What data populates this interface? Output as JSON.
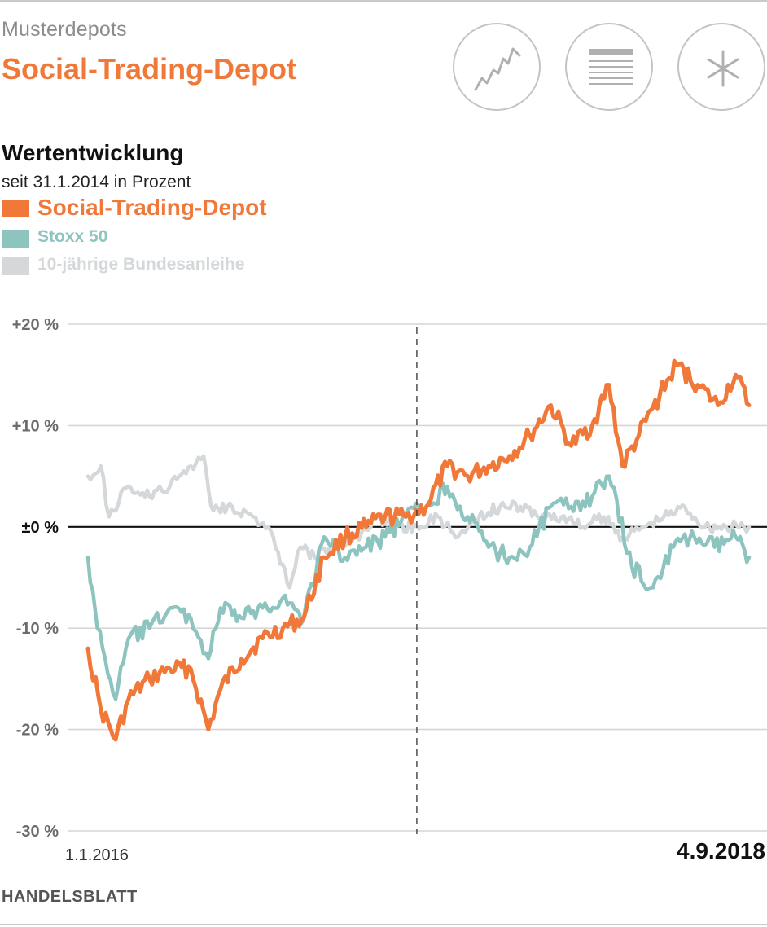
{
  "header": {
    "kicker": "Musterdepots",
    "title": "Social-Trading-Depot"
  },
  "toolbar": {
    "buttons": [
      {
        "icon": "line-chart-icon"
      },
      {
        "icon": "table-icon"
      },
      {
        "icon": "asterisk-icon"
      }
    ]
  },
  "footer": {
    "source": "HANDELSBLATT"
  },
  "colors": {
    "accent": "#f07838",
    "stoxx": "#8ec4c0",
    "bund": "#d4d8da",
    "grid": "#d6d6d6",
    "zero": "#111111",
    "tick": "#6b6b6b"
  },
  "chart_data": {
    "type": "line",
    "title": "Wertentwicklung",
    "subtitle": "seit 31.1.2014 in Prozent",
    "ylim": [
      -30,
      20
    ],
    "yticks": [
      20,
      10,
      0,
      -10,
      -20,
      -30
    ],
    "ytick_labels": [
      "+20 %",
      "+10 %",
      "±0 %",
      "-10 %",
      "-20 %",
      "-30 %"
    ],
    "xlim": [
      "2016-01-01",
      "2018-09-04"
    ],
    "x_labels": [
      "1.1.2016",
      "4.9.2018"
    ],
    "marker_date": "2017-05-01",
    "legend_position": "top-left",
    "grid": true,
    "series": [
      {
        "name": "Social-Trading-Depot",
        "color": "#f07838",
        "x": [
          "2016-01-01",
          "2016-01-20",
          "2016-02-11",
          "2016-03-01",
          "2016-04-01",
          "2016-05-01",
          "2016-06-01",
          "2016-06-27",
          "2016-07-15",
          "2016-08-15",
          "2016-09-15",
          "2016-10-15",
          "2016-11-15",
          "2016-12-15",
          "2017-01-15",
          "2017-02-15",
          "2017-03-15",
          "2017-04-15",
          "2017-05-15",
          "2017-06-15",
          "2017-07-15",
          "2017-08-15",
          "2017-09-15",
          "2017-10-15",
          "2017-11-15",
          "2017-12-15",
          "2018-01-15",
          "2018-02-09",
          "2018-03-01",
          "2018-03-25",
          "2018-04-25",
          "2018-05-20",
          "2018-06-20",
          "2018-07-20",
          "2018-08-15",
          "2018-09-04"
        ],
        "y": [
          -12,
          -18,
          -21,
          -17,
          -15,
          -14,
          -14,
          -20,
          -16,
          -13,
          -11,
          -10,
          -9,
          -3,
          -1,
          0,
          1,
          1,
          2,
          6,
          5,
          6,
          7,
          9,
          12,
          8,
          10,
          14,
          6,
          9,
          13,
          16,
          14,
          12,
          15,
          12
        ]
      },
      {
        "name": "Stoxx 50",
        "color": "#8ec4c0",
        "x": [
          "2016-01-01",
          "2016-01-15",
          "2016-02-11",
          "2016-03-01",
          "2016-04-01",
          "2016-05-01",
          "2016-06-01",
          "2016-06-27",
          "2016-07-15",
          "2016-08-15",
          "2016-09-15",
          "2016-10-15",
          "2016-11-15",
          "2016-12-15",
          "2017-01-15",
          "2017-02-15",
          "2017-03-15",
          "2017-04-15",
          "2017-05-15",
          "2017-06-15",
          "2017-07-15",
          "2017-08-15",
          "2017-09-15",
          "2017-10-15",
          "2017-11-15",
          "2017-12-15",
          "2018-01-15",
          "2018-02-09",
          "2018-03-15",
          "2018-04-15",
          "2018-05-15",
          "2018-06-15",
          "2018-07-15",
          "2018-08-15",
          "2018-09-04"
        ],
        "y": [
          -3,
          -10,
          -17,
          -11,
          -10,
          -8,
          -9,
          -13,
          -8,
          -9,
          -8,
          -7,
          -9,
          -1,
          -3,
          -2,
          -1,
          1,
          2,
          4,
          1,
          -2,
          -3,
          -2,
          2,
          2,
          3,
          5,
          -4,
          -6,
          -2,
          -1,
          -2,
          -1,
          -3
        ]
      },
      {
        "name": "10-jährige Bundesanleihe",
        "color": "#d4d8da",
        "x": [
          "2016-01-01",
          "2016-01-20",
          "2016-02-01",
          "2016-03-01",
          "2016-04-01",
          "2016-05-01",
          "2016-06-01",
          "2016-06-20",
          "2016-07-01",
          "2016-08-01",
          "2016-09-01",
          "2016-10-01",
          "2016-10-25",
          "2016-11-10",
          "2016-12-01",
          "2017-01-01",
          "2017-02-01",
          "2017-03-01",
          "2017-04-01",
          "2017-05-01",
          "2017-06-01",
          "2017-07-01",
          "2017-08-01",
          "2017-09-01",
          "2017-10-01",
          "2017-11-01",
          "2017-12-01",
          "2018-01-01",
          "2018-02-01",
          "2018-03-01",
          "2018-04-01",
          "2018-05-01",
          "2018-06-01",
          "2018-07-01",
          "2018-08-01",
          "2018-09-04"
        ],
        "y": [
          5,
          6,
          1,
          4,
          3,
          4,
          6,
          7,
          2,
          2,
          1,
          -1,
          -6,
          -2,
          -3,
          -2,
          -1,
          1,
          0,
          0,
          1,
          -1,
          1,
          2,
          2,
          1,
          1,
          0,
          1,
          -1,
          0,
          1,
          2,
          0,
          0,
          0
        ]
      }
    ]
  }
}
